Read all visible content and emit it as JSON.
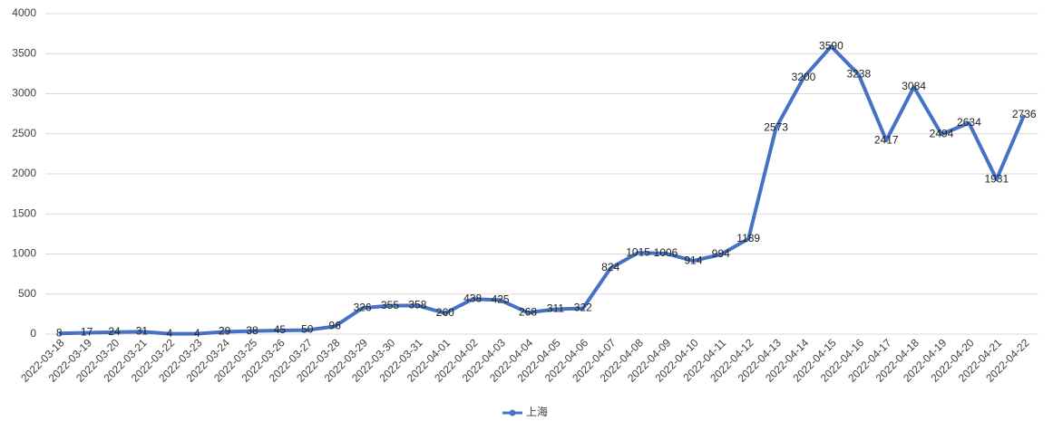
{
  "chart_data": {
    "type": "line",
    "categories": [
      "2022-03-18",
      "2022-03-19",
      "2022-03-20",
      "2022-03-21",
      "2022-03-22",
      "2022-03-23",
      "2022-03-24",
      "2022-03-25",
      "2022-03-26",
      "2022-03-27",
      "2022-03-28",
      "2022-03-29",
      "2022-03-30",
      "2022-03-31",
      "2022-04-01",
      "2022-04-02",
      "2022-04-03",
      "2022-04-04",
      "2022-04-05",
      "2022-04-06",
      "2022-04-07",
      "2022-04-08",
      "2022-04-09",
      "2022-04-10",
      "2022-04-11",
      "2022-04-12",
      "2022-04-13",
      "2022-04-14",
      "2022-04-15",
      "2022-04-16",
      "2022-04-17",
      "2022-04-18",
      "2022-04-19",
      "2022-04-20",
      "2022-04-21",
      "2022-04-22"
    ],
    "series": [
      {
        "name": "上海",
        "color": "#4472c4",
        "values": [
          8,
          17,
          24,
          31,
          4,
          4,
          29,
          38,
          45,
          50,
          96,
          326,
          355,
          358,
          260,
          438,
          425,
          268,
          311,
          322,
          824,
          1015,
          1006,
          914,
          994,
          1189,
          2573,
          3200,
          3590,
          3238,
          2417,
          3084,
          2494,
          2634,
          1931,
          2736
        ]
      }
    ],
    "ylim": [
      0,
      4000
    ],
    "yticks": [
      0,
      500,
      1000,
      1500,
      2000,
      2500,
      3000,
      3500,
      4000
    ],
    "grid": true,
    "legend": "bottom",
    "data_labels": true
  }
}
